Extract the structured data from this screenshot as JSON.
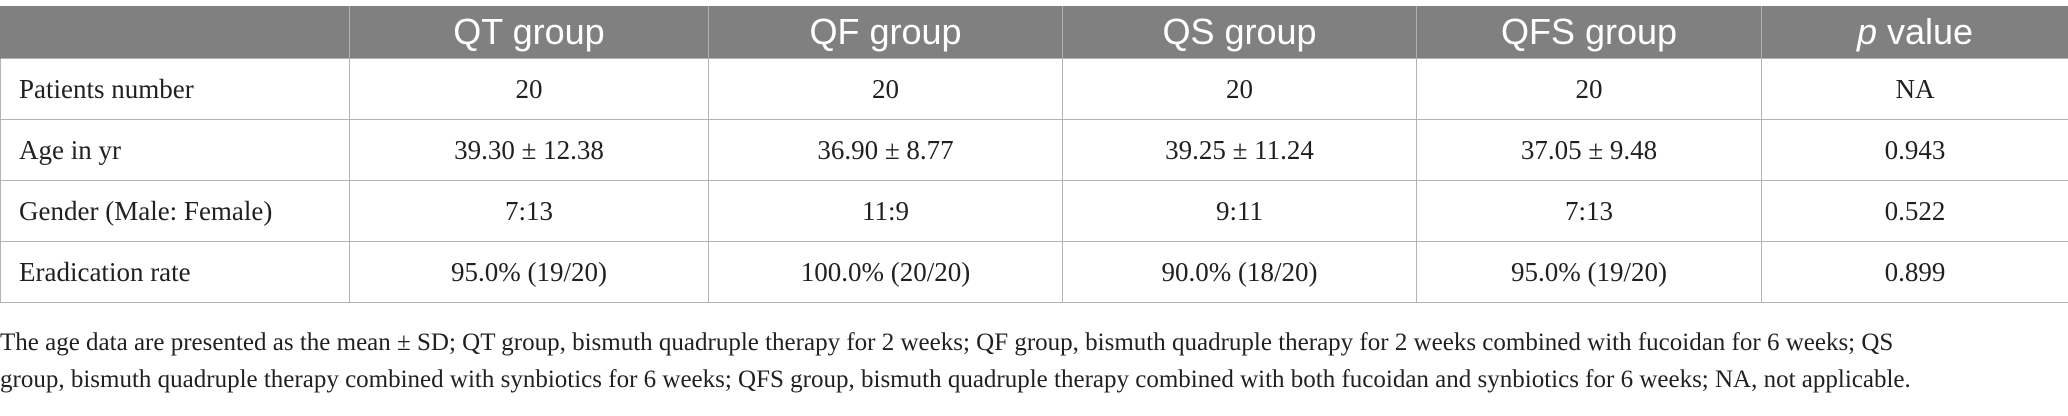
{
  "table": {
    "headers": [
      "",
      "QT group",
      "QF group",
      "QS group",
      "QFS group"
    ],
    "p_header": {
      "italic": "p",
      "rest": " value"
    },
    "rows": [
      {
        "label": "Patients number",
        "values": [
          "20",
          "20",
          "20",
          "20",
          "NA"
        ]
      },
      {
        "label": "Age in yr",
        "values": [
          "39.30 ± 12.38",
          "36.90 ± 8.77",
          "39.25 ± 11.24",
          "37.05 ± 9.48",
          "0.943"
        ]
      },
      {
        "label": "Gender (Male: Female)",
        "values": [
          "7:13",
          "11:9",
          "9:11",
          "7:13",
          "0.522"
        ]
      },
      {
        "label": "Eradication rate",
        "values": [
          "95.0% (19/20)",
          "100.0% (20/20)",
          "90.0% (18/20)",
          "95.0% (19/20)",
          "0.899"
        ]
      }
    ]
  },
  "footnote": {
    "line1": "The age data are presented as the mean ± SD; QT group, bismuth quadruple therapy for 2 weeks; QF group, bismuth quadruple therapy for 2 weeks combined with fucoidan for 6 weeks; QS",
    "line2": "group, bismuth quadruple therapy combined with synbiotics for 6 weeks; QFS group, bismuth quadruple therapy combined with both fucoidan and synbiotics for 6 weeks; NA, not applicable."
  }
}
